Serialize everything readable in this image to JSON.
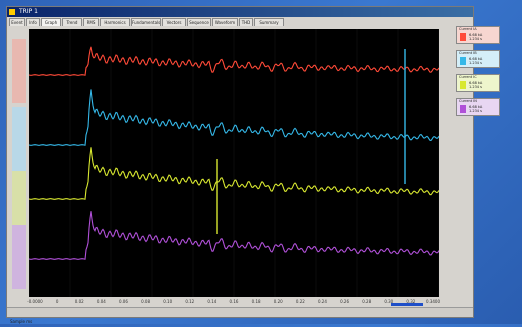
{
  "window": {
    "title": "TRIP 1"
  },
  "tabs": [
    "Event",
    "Info",
    "Graph",
    "Trend",
    "RMS",
    "Harmonics",
    "Fundamentals",
    "Vectors",
    "Sequence",
    "Waveform",
    "THD",
    "Summary"
  ],
  "active_tab": 2,
  "legend": [
    {
      "header": "Current IA",
      "line1": "6.68 kA",
      "line2": "1.234 s",
      "color": "#ff4a38",
      "bg": "#f7d6d0"
    },
    {
      "header": "Current IB",
      "line1": "6.68 kA",
      "line2": "1.234 s",
      "color": "#35b8e8",
      "bg": "#d4eef8"
    },
    {
      "header": "Current IC",
      "line1": "6.68 kA",
      "line2": "1.234 s",
      "color": "#d8e830",
      "bg": "#eef5cc"
    },
    {
      "header": "Current IN",
      "line1": "6.68 kA",
      "line2": "1.234 s",
      "color": "#b050d8",
      "bg": "#e8d6f2"
    }
  ],
  "traces": [
    {
      "name": "red-trace",
      "color": "#ff4a38",
      "baseline": 68,
      "spike": 22
    },
    {
      "name": "blue-trace",
      "color": "#35b8e8",
      "baseline": 138,
      "spike": 50
    },
    {
      "name": "yellow-trace",
      "color": "#d8e830",
      "baseline": 192,
      "spike": 46
    },
    {
      "name": "purple-trace",
      "color": "#b050d8",
      "baseline": 252,
      "spike": 42
    }
  ],
  "xaxis": {
    "ticks": [
      "-0.0000",
      "0",
      "0.02",
      "0.04",
      "0.06",
      "0.08",
      "0.10",
      "0.12",
      "0.14",
      "0.16",
      "0.18",
      "0.20",
      "0.22",
      "0.24",
      "0.26",
      "0.28",
      "0.30",
      "0.32",
      "0.3400"
    ]
  },
  "status": {
    "text": "Sample ms"
  }
}
